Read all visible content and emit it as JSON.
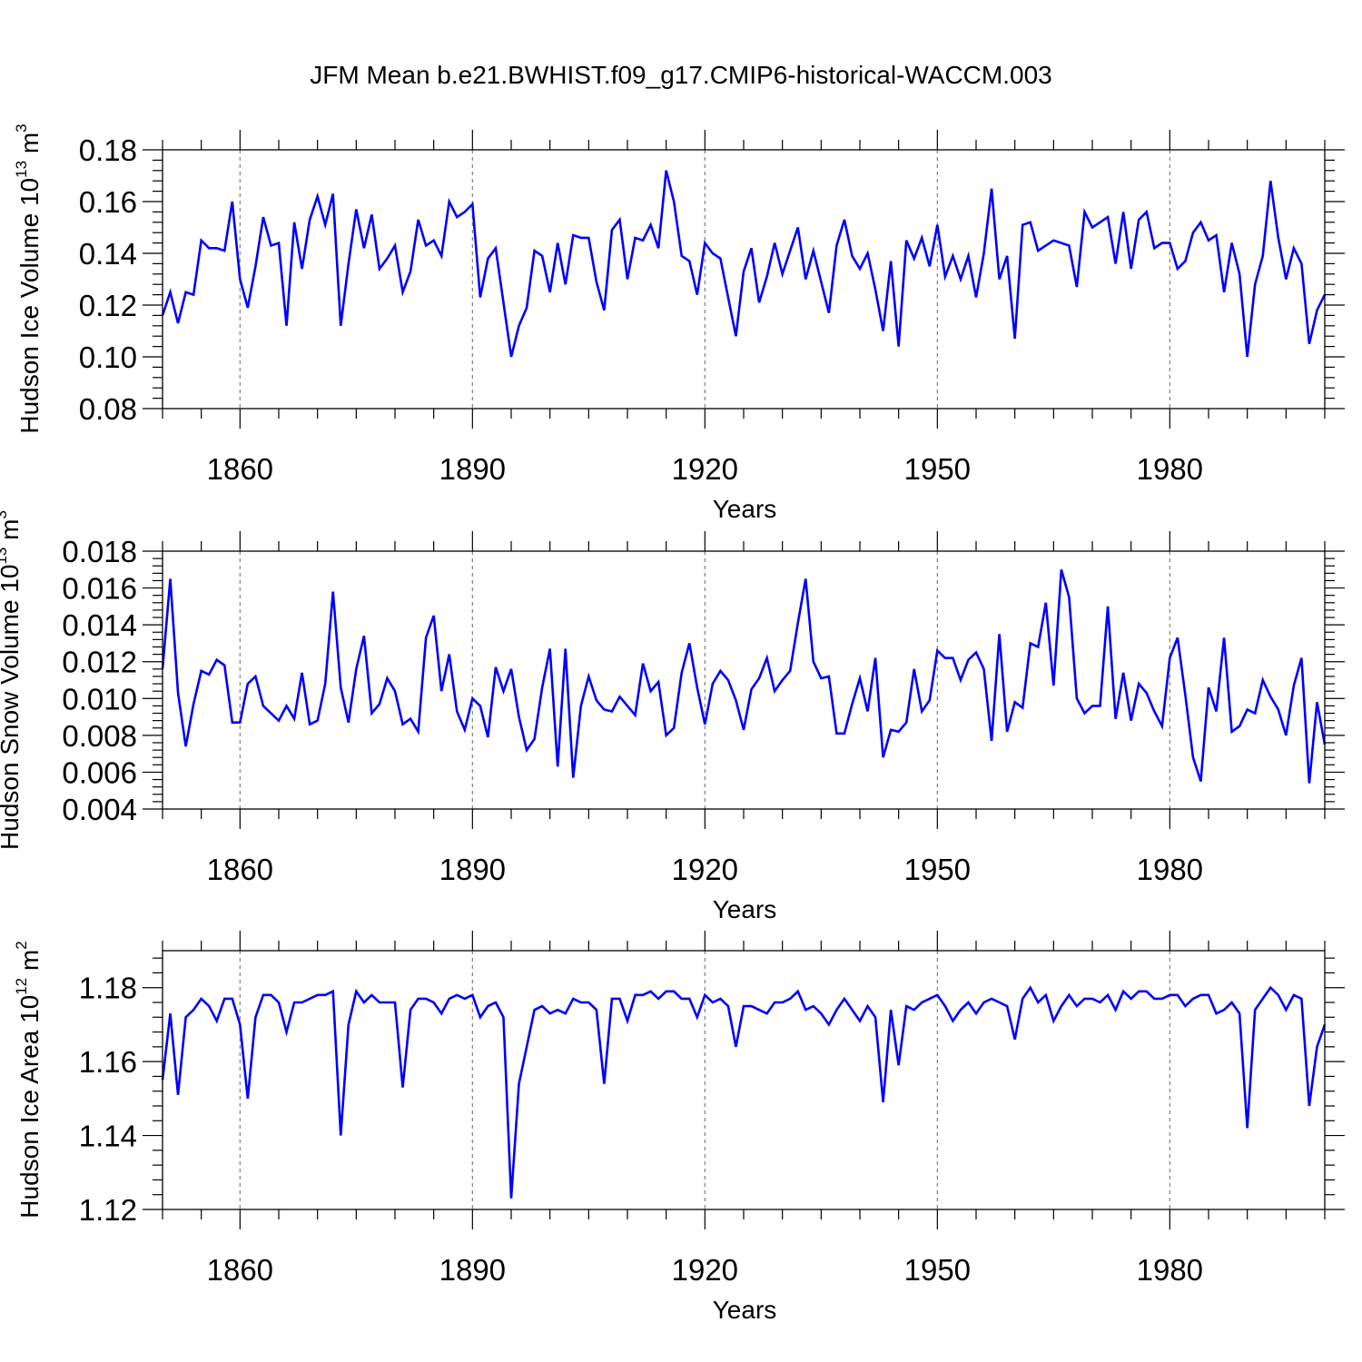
{
  "title": "JFM Mean b.e21.BWHIST.f09_g17.CMIP6-historical-WACCM.003",
  "colors": {
    "line": "#0000ff",
    "axis": "#000000",
    "grid": "#808080"
  },
  "chart_data": [
    {
      "type": "line",
      "ylabel": {
        "base": "Hudson Ice Volume 10",
        "exp": "13",
        "unit": " m",
        "unit_exp": "3"
      },
      "xlabel": "Years",
      "xlim": [
        1850,
        2000
      ],
      "ylim": [
        0.08,
        0.18
      ],
      "yticks": [
        "0.08",
        "0.10",
        "0.12",
        "0.14",
        "0.16",
        "0.18"
      ],
      "ytick_values": [
        0.08,
        0.1,
        0.12,
        0.14,
        0.16,
        0.18
      ],
      "xticks": [
        1860,
        1890,
        1920,
        1950,
        1980
      ],
      "x_start": 1850,
      "values": [
        0.116,
        0.125,
        0.113,
        0.125,
        0.124,
        0.145,
        0.142,
        0.142,
        0.141,
        0.16,
        0.13,
        0.119,
        0.135,
        0.154,
        0.143,
        0.144,
        0.112,
        0.152,
        0.134,
        0.153,
        0.162,
        0.151,
        0.163,
        0.112,
        0.136,
        0.157,
        0.142,
        0.155,
        0.134,
        0.138,
        0.143,
        0.125,
        0.133,
        0.153,
        0.143,
        0.145,
        0.139,
        0.16,
        0.154,
        0.156,
        0.159,
        0.123,
        0.138,
        0.142,
        0.121,
        0.1,
        0.112,
        0.119,
        0.141,
        0.139,
        0.125,
        0.144,
        0.128,
        0.147,
        0.146,
        0.146,
        0.129,
        0.118,
        0.149,
        0.153,
        0.13,
        0.146,
        0.145,
        0.151,
        0.142,
        0.172,
        0.16,
        0.139,
        0.137,
        0.124,
        0.144,
        0.14,
        0.138,
        0.123,
        0.108,
        0.133,
        0.142,
        0.121,
        0.131,
        0.144,
        0.132,
        0.141,
        0.15,
        0.13,
        0.141,
        0.129,
        0.117,
        0.143,
        0.153,
        0.139,
        0.134,
        0.14,
        0.126,
        0.11,
        0.137,
        0.104,
        0.145,
        0.138,
        0.146,
        0.135,
        0.151,
        0.131,
        0.139,
        0.13,
        0.139,
        0.123,
        0.14,
        0.165,
        0.13,
        0.139,
        0.107,
        0.151,
        0.152,
        0.141,
        0.143,
        0.145,
        0.144,
        0.143,
        0.127,
        0.156,
        0.15,
        0.152,
        0.154,
        0.136,
        0.156,
        0.134,
        0.153,
        0.156,
        0.142,
        0.144,
        0.144,
        0.134,
        0.137,
        0.148,
        0.152,
        0.145,
        0.147,
        0.125,
        0.144,
        0.132,
        0.1,
        0.128,
        0.139,
        0.168,
        0.146,
        0.13,
        0.142,
        0.136,
        0.105,
        0.118,
        0.124
      ]
    },
    {
      "type": "line",
      "ylabel": {
        "base": "Hudson Snow Volume 10",
        "exp": "13",
        "unit": " m",
        "unit_exp": "3"
      },
      "xlabel": "Years",
      "xlim": [
        1850,
        2000
      ],
      "ylim": [
        0.004,
        0.018
      ],
      "yticks": [
        "0.004",
        "0.006",
        "0.008",
        "0.010",
        "0.012",
        "0.014",
        "0.016",
        "0.018"
      ],
      "ytick_values": [
        0.004,
        0.006,
        0.008,
        0.01,
        0.012,
        0.014,
        0.016,
        0.018
      ],
      "xticks": [
        1860,
        1890,
        1920,
        1950,
        1980
      ],
      "x_start": 1850,
      "values": [
        0.0116,
        0.0165,
        0.0103,
        0.0074,
        0.0097,
        0.0115,
        0.0113,
        0.0121,
        0.0118,
        0.0087,
        0.0087,
        0.0108,
        0.0112,
        0.0096,
        0.0092,
        0.0088,
        0.0096,
        0.0089,
        0.0114,
        0.0086,
        0.0088,
        0.0108,
        0.0158,
        0.0106,
        0.0087,
        0.0116,
        0.0134,
        0.0092,
        0.0097,
        0.0111,
        0.0104,
        0.0086,
        0.0089,
        0.0082,
        0.0133,
        0.0145,
        0.0104,
        0.0124,
        0.0093,
        0.0083,
        0.01,
        0.0096,
        0.0079,
        0.0117,
        0.0104,
        0.0116,
        0.009,
        0.0072,
        0.0078,
        0.0106,
        0.0127,
        0.0063,
        0.0127,
        0.0057,
        0.0096,
        0.0112,
        0.0099,
        0.0094,
        0.0093,
        0.0101,
        0.0096,
        0.0091,
        0.0119,
        0.0104,
        0.0109,
        0.008,
        0.0084,
        0.0114,
        0.013,
        0.0106,
        0.0086,
        0.0108,
        0.0115,
        0.011,
        0.0099,
        0.0083,
        0.0105,
        0.0111,
        0.0122,
        0.0104,
        0.011,
        0.0115,
        0.0141,
        0.0165,
        0.012,
        0.0111,
        0.0112,
        0.0081,
        0.0081,
        0.0097,
        0.0111,
        0.0093,
        0.0122,
        0.0068,
        0.0083,
        0.0082,
        0.0087,
        0.0116,
        0.0093,
        0.0099,
        0.0126,
        0.0122,
        0.0122,
        0.011,
        0.0121,
        0.0125,
        0.0116,
        0.0077,
        0.0135,
        0.0082,
        0.0098,
        0.0095,
        0.013,
        0.0128,
        0.0152,
        0.0107,
        0.017,
        0.0155,
        0.01,
        0.0092,
        0.0096,
        0.0096,
        0.015,
        0.0089,
        0.0114,
        0.0088,
        0.0108,
        0.0103,
        0.0093,
        0.0085,
        0.0122,
        0.0133,
        0.0102,
        0.0068,
        0.0055,
        0.0106,
        0.0093,
        0.0133,
        0.0082,
        0.0085,
        0.0094,
        0.0092,
        0.011,
        0.0101,
        0.0094,
        0.008,
        0.0107,
        0.0122,
        0.0054,
        0.0098,
        0.0075
      ]
    },
    {
      "type": "line",
      "ylabel": {
        "base": "Hudson Ice Area 10",
        "exp": "12",
        "unit": " m",
        "unit_exp": "2"
      },
      "xlabel": "Years",
      "xlim": [
        1850,
        2000
      ],
      "ylim": [
        1.12,
        1.19
      ],
      "yticks": [
        "1.12",
        "1.14",
        "1.16",
        "1.18"
      ],
      "ytick_values": [
        1.12,
        1.14,
        1.16,
        1.18
      ],
      "xticks": [
        1860,
        1890,
        1920,
        1950,
        1980
      ],
      "x_start": 1850,
      "values": [
        1.155,
        1.173,
        1.151,
        1.172,
        1.174,
        1.177,
        1.175,
        1.171,
        1.177,
        1.177,
        1.17,
        1.15,
        1.172,
        1.178,
        1.178,
        1.176,
        1.168,
        1.176,
        1.176,
        1.177,
        1.178,
        1.178,
        1.179,
        1.14,
        1.17,
        1.179,
        1.176,
        1.178,
        1.176,
        1.176,
        1.176,
        1.153,
        1.174,
        1.177,
        1.177,
        1.176,
        1.173,
        1.177,
        1.178,
        1.177,
        1.178,
        1.172,
        1.175,
        1.176,
        1.172,
        1.123,
        1.154,
        1.164,
        1.174,
        1.175,
        1.173,
        1.174,
        1.173,
        1.177,
        1.176,
        1.176,
        1.174,
        1.154,
        1.177,
        1.177,
        1.171,
        1.178,
        1.178,
        1.179,
        1.177,
        1.179,
        1.179,
        1.177,
        1.177,
        1.172,
        1.178,
        1.176,
        1.177,
        1.175,
        1.164,
        1.175,
        1.175,
        1.174,
        1.173,
        1.176,
        1.176,
        1.177,
        1.179,
        1.174,
        1.175,
        1.173,
        1.17,
        1.174,
        1.177,
        1.174,
        1.171,
        1.175,
        1.172,
        1.149,
        1.174,
        1.159,
        1.175,
        1.174,
        1.176,
        1.177,
        1.178,
        1.175,
        1.171,
        1.174,
        1.176,
        1.173,
        1.176,
        1.177,
        1.176,
        1.175,
        1.166,
        1.177,
        1.18,
        1.176,
        1.178,
        1.171,
        1.175,
        1.178,
        1.175,
        1.177,
        1.177,
        1.176,
        1.178,
        1.174,
        1.179,
        1.177,
        1.179,
        1.179,
        1.177,
        1.177,
        1.178,
        1.178,
        1.175,
        1.177,
        1.178,
        1.178,
        1.173,
        1.174,
        1.176,
        1.173,
        1.142,
        1.174,
        1.177,
        1.18,
        1.178,
        1.174,
        1.178,
        1.177,
        1.148,
        1.164,
        1.17
      ]
    }
  ]
}
